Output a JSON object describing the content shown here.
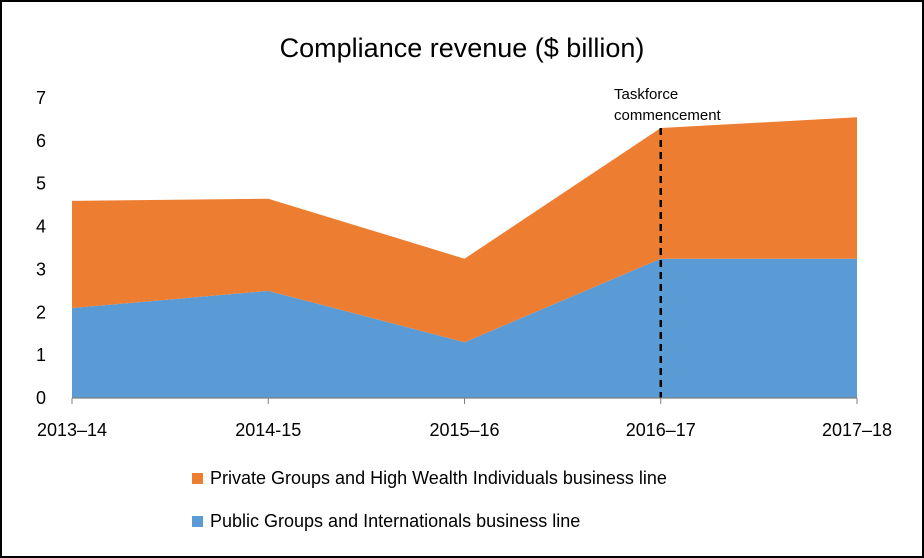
{
  "chart_data": {
    "type": "area",
    "stacked": true,
    "title": "Compliance revenue ($ billion)",
    "xlabel": "",
    "ylabel": "",
    "categories": [
      "2013–14",
      "2014-15",
      "2015–16",
      "2016–17",
      "2017–18"
    ],
    "ylim": [
      0,
      7
    ],
    "yticks": [
      "0",
      "1",
      "2",
      "3",
      "4",
      "5",
      "6",
      "7"
    ],
    "grid": false,
    "legend_position": "bottom",
    "series": [
      {
        "name": "Public Groups and Internationals business line",
        "color": "#5B9BD5",
        "values": [
          2.1,
          2.5,
          1.3,
          3.25,
          3.25
        ]
      },
      {
        "name": "Private Groups and High Wealth Individuals business line",
        "color": "#ED7D31",
        "values": [
          2.5,
          2.15,
          1.95,
          3.05,
          3.3
        ]
      }
    ],
    "legend_order": [
      1,
      0
    ],
    "annotation": {
      "text_line1": "Taskforce",
      "text_line2": "commencement",
      "category": "2016–17",
      "line_style": "dashed"
    }
  }
}
